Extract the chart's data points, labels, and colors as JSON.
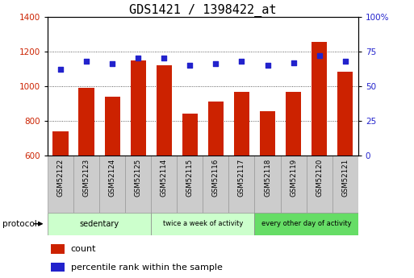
{
  "title": "GDS1421 / 1398422_at",
  "samples": [
    "GSM52122",
    "GSM52123",
    "GSM52124",
    "GSM52125",
    "GSM52114",
    "GSM52115",
    "GSM52116",
    "GSM52117",
    "GSM52118",
    "GSM52119",
    "GSM52120",
    "GSM52121"
  ],
  "count_values": [
    740,
    990,
    940,
    1150,
    1120,
    840,
    910,
    965,
    858,
    965,
    1255,
    1085
  ],
  "percentile_values": [
    62,
    68,
    66,
    70,
    70,
    65,
    66,
    68,
    65,
    67,
    72,
    68
  ],
  "bar_bottom": 600,
  "ylim_left": [
    600,
    1400
  ],
  "ylim_right": [
    0,
    100
  ],
  "yticks_left": [
    600,
    800,
    1000,
    1200,
    1400
  ],
  "yticks_right": [
    0,
    25,
    50,
    75,
    100
  ],
  "bar_color": "#cc2200",
  "dot_color": "#2222cc",
  "background_color": "#ffffff",
  "grid_color": "#333333",
  "groups": [
    {
      "label": "sedentary",
      "start": 0,
      "end": 4,
      "color": "#ccffcc"
    },
    {
      "label": "twice a week of activity",
      "start": 4,
      "end": 8,
      "color": "#ccffcc"
    },
    {
      "label": "every other day of activity",
      "start": 8,
      "end": 12,
      "color": "#66dd66"
    }
  ],
  "protocol_label": "protocol",
  "legend_count_label": "count",
  "legend_percentile_label": "percentile rank within the sample"
}
